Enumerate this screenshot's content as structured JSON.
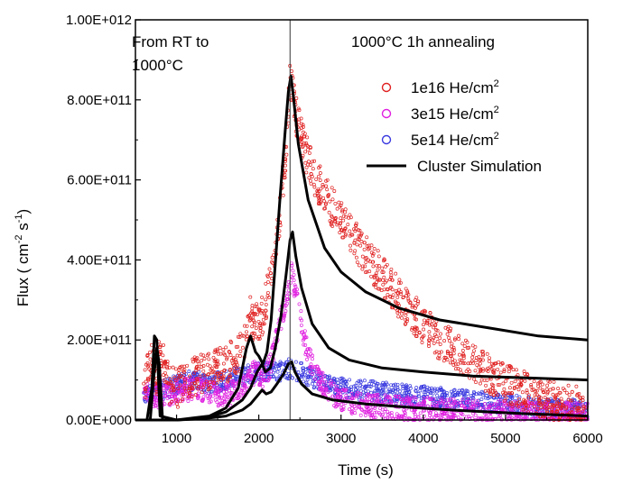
{
  "chart_data": {
    "type": "scatter",
    "xlabel": "Time (s)",
    "ylabel": "Flux ( cm",
    "ylabel_sup1": "-2",
    "ylabel_mid": " s",
    "ylabel_sup2": "-1",
    "ylabel_end": ")",
    "xlim": [
      500,
      6000
    ],
    "ylim": [
      0,
      1000000000000.0
    ],
    "x_ticks": [
      1000,
      2000,
      3000,
      4000,
      5000,
      6000
    ],
    "x_tick_labels": [
      "1000",
      "2000",
      "3000",
      "4000",
      "5000",
      "6000"
    ],
    "y_ticks": [
      0,
      200000000000.0,
      400000000000.0,
      600000000000.0,
      800000000000.0,
      1000000000000.0
    ],
    "y_tick_labels": [
      "0.00E+000",
      "2.00E+011",
      "4.00E+011",
      "6.00E+011",
      "8.00E+011",
      "1.00E+012"
    ],
    "annotations": {
      "left_line1": "From RT to",
      "left_line2": "1000°C",
      "right": "1000°C  1h annealing",
      "divider_x": 2380
    },
    "legend": [
      {
        "label": "1e16 He/cm",
        "sup": "2",
        "color": "#e02020",
        "marker": "circle"
      },
      {
        "label": "3e15 He/cm",
        "sup": "2",
        "color": "#e020e0",
        "marker": "circle"
      },
      {
        "label": "5e14 He/cm",
        "sup": "2",
        "color": "#3a3ae0",
        "marker": "circle"
      },
      {
        "label": "Cluster Simulation",
        "color": "#000000",
        "marker": "line"
      }
    ],
    "series": [
      {
        "name": "1e16 He/cm2",
        "kind": "scatter",
        "color": "#e02020",
        "x": [
          600,
          700,
          760,
          800,
          900,
          1000,
          1200,
          1400,
          1600,
          1800,
          1880,
          1950,
          2050,
          2150,
          2250,
          2330,
          2380,
          2450,
          2550,
          2700,
          2900,
          3200,
          3500,
          3800,
          4200,
          4600,
          5000,
          5500,
          6000
        ],
        "y": [
          80000000000.0,
          160000000000.0,
          100000000000.0,
          170000000000.0,
          90000000000.0,
          80000000000.0,
          110000000000.0,
          120000000000.0,
          140000000000.0,
          170000000000.0,
          270000000000.0,
          240000000000.0,
          260000000000.0,
          360000000000.0,
          500000000000.0,
          680000000000.0,
          850000000000.0,
          760000000000.0,
          680000000000.0,
          600000000000.0,
          530000000000.0,
          440000000000.0,
          360000000000.0,
          280000000000.0,
          200000000000.0,
          140000000000.0,
          90000000000.0,
          50000000000.0,
          30000000000.0
        ],
        "band": 50000000000.0
      },
      {
        "name": "3e15 He/cm2",
        "kind": "scatter",
        "color": "#e020e0",
        "x": [
          600,
          800,
          1000,
          1200,
          1400,
          1600,
          1800,
          1950,
          2050,
          2150,
          2250,
          2330,
          2400,
          2500,
          2600,
          2800,
          3000,
          3300,
          3700,
          4200,
          4800,
          5400,
          6000
        ],
        "y": [
          70000000000.0,
          60000000000.0,
          70000000000.0,
          80000000000.0,
          70000000000.0,
          60000000000.0,
          80000000000.0,
          120000000000.0,
          100000000000.0,
          140000000000.0,
          240000000000.0,
          300000000000.0,
          370000000000.0,
          260000000000.0,
          160000000000.0,
          80000000000.0,
          50000000000.0,
          35000000000.0,
          30000000000.0,
          25000000000.0,
          20000000000.0,
          15000000000.0,
          15000000000.0
        ],
        "band": 30000000000.0
      },
      {
        "name": "5e14 He/cm2",
        "kind": "scatter",
        "color": "#3a3ae0",
        "x": [
          600,
          800,
          1000,
          1200,
          1400,
          1600,
          1800,
          2000,
          2200,
          2400,
          2600,
          2800,
          3000,
          3500,
          4000,
          4500,
          5000,
          5500,
          6000
        ],
        "y": [
          70000000000.0,
          70000000000.0,
          90000000000.0,
          100000000000.0,
          90000000000.0,
          100000000000.0,
          110000000000.0,
          120000000000.0,
          120000000000.0,
          130000000000.0,
          110000000000.0,
          90000000000.0,
          80000000000.0,
          70000000000.0,
          60000000000.0,
          50000000000.0,
          40000000000.0,
          30000000000.0,
          25000000000.0
        ],
        "band": 25000000000.0
      },
      {
        "name": "Cluster Simulation (1e16)",
        "kind": "line",
        "color": "#000000",
        "x": [
          500,
          640,
          700,
          730,
          760,
          800,
          1000,
          1200,
          1400,
          1600,
          1750,
          1850,
          1900,
          1960,
          2000,
          2050,
          2100,
          2150,
          2200,
          2260,
          2320,
          2360,
          2390,
          2420,
          2480,
          2600,
          2800,
          3000,
          3300,
          3700,
          4200,
          4800,
          5400,
          6000
        ],
        "y": [
          0,
          0,
          80000000000.0,
          210000000000.0,
          200000000000.0,
          10000000000.0,
          0,
          5000000000.0,
          10000000000.0,
          30000000000.0,
          80000000000.0,
          180000000000.0,
          210000000000.0,
          170000000000.0,
          160000000000.0,
          140000000000.0,
          170000000000.0,
          250000000000.0,
          390000000000.0,
          560000000000.0,
          720000000000.0,
          820000000000.0,
          860000000000.0,
          810000000000.0,
          690000000000.0,
          550000000000.0,
          430000000000.0,
          370000000000.0,
          320000000000.0,
          280000000000.0,
          250000000000.0,
          230000000000.0,
          210000000000.0,
          200000000000.0
        ]
      },
      {
        "name": "Cluster Simulation (3e15)",
        "kind": "line",
        "color": "#000000",
        "x": [
          500,
          680,
          720,
          760,
          790,
          830,
          1000,
          1200,
          1400,
          1600,
          1800,
          1900,
          1980,
          2040,
          2080,
          2140,
          2200,
          2270,
          2330,
          2380,
          2410,
          2450,
          2520,
          2650,
          2850,
          3100,
          3500,
          4000,
          4600,
          5300,
          6000
        ],
        "y": [
          0,
          0,
          100000000000.0,
          180000000000.0,
          140000000000.0,
          0,
          0,
          3000000000.0,
          8000000000.0,
          20000000000.0,
          50000000000.0,
          80000000000.0,
          120000000000.0,
          140000000000.0,
          120000000000.0,
          130000000000.0,
          180000000000.0,
          260000000000.0,
          360000000000.0,
          450000000000.0,
          470000000000.0,
          410000000000.0,
          330000000000.0,
          240000000000.0,
          180000000000.0,
          150000000000.0,
          130000000000.0,
          120000000000.0,
          110000000000.0,
          105000000000.0,
          100000000000.0
        ]
      },
      {
        "name": "Cluster Simulation (5e14)",
        "kind": "line",
        "color": "#000000",
        "x": [
          500,
          1000,
          1200,
          1400,
          1600,
          1800,
          1900,
          1980,
          2040,
          2090,
          2150,
          2220,
          2300,
          2360,
          2400,
          2440,
          2520,
          2650,
          2900,
          3300,
          3800,
          4400,
          5200,
          6000
        ],
        "y": [
          0,
          0,
          2000000000.0,
          5000000000.0,
          10000000000.0,
          25000000000.0,
          40000000000.0,
          60000000000.0,
          75000000000.0,
          65000000000.0,
          70000000000.0,
          90000000000.0,
          115000000000.0,
          140000000000.0,
          145000000000.0,
          120000000000.0,
          90000000000.0,
          65000000000.0,
          50000000000.0,
          40000000000.0,
          32000000000.0,
          24000000000.0,
          16000000000.0,
          10000000000.0
        ]
      }
    ]
  }
}
